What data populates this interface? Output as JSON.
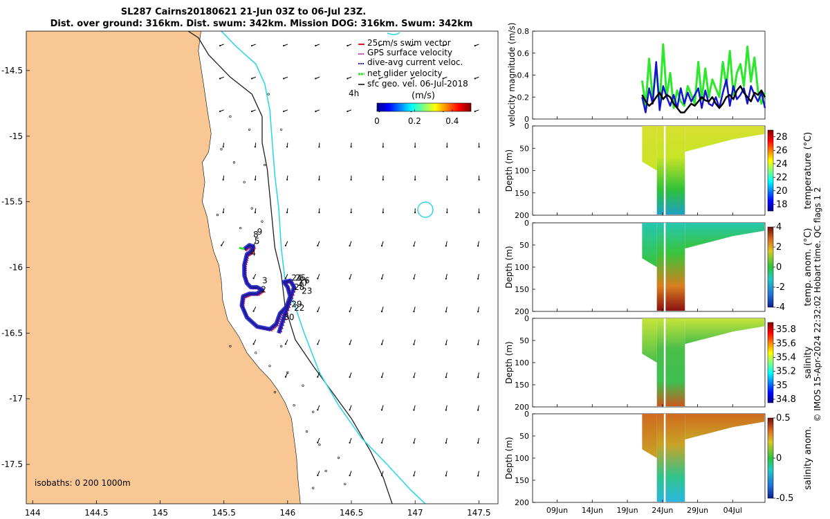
{
  "colors": {
    "land": "#F9C794",
    "isobath_200": "#1E1E1E",
    "isobath_1000": "#2ED7E6",
    "track": "#1B1B8E",
    "swim_vector": "#E31A1C",
    "gps_velocity": "#D52BD5",
    "dive_avg": "#1414D0",
    "net_velocity": "#2BE82B",
    "sfc_geo": "#000000"
  },
  "chart_data": [
    {
      "type": "map",
      "title": "SL287 Cairns20180621 21-Jun 03Z to 06-Jul 23Z.",
      "subtitle": "Dist. over ground: 316km. Dist. swum: 342km. Mission DOG: 316km. Swum: 342km",
      "xlim": [
        143.95,
        147.65
      ],
      "ylim": [
        -17.8,
        -14.2
      ],
      "xticks": [
        "144",
        "144.5",
        "145",
        "145.5",
        "146",
        "146.5",
        "147",
        "147.5"
      ],
      "yticks": [
        "-14.5",
        "-15",
        "-15.5",
        "-16",
        "-16.5",
        "-17",
        "-17.5"
      ],
      "legend": [
        "25cm/s swim vector",
        "GPS surface velocity",
        "dive-avg current veloc.",
        "net glider velocity",
        "sfc geo. vel. 06-Jul-2018"
      ],
      "legend_placement": "top-right",
      "time_marker": "4h",
      "colorbar_label": "(m/s)",
      "colorbar_ticks": [
        "0",
        "0.2",
        "0.4"
      ],
      "colorbar_range": [
        0,
        0.5
      ],
      "isobaths_label": "isobaths: 0   200  1000m",
      "day_labels": [
        {
          "t": "9",
          "lon": 145.76,
          "lat": -15.75
        },
        {
          "t": "8",
          "lon": 145.73,
          "lat": -15.77
        },
        {
          "t": "5",
          "lon": 145.74,
          "lat": -15.82
        },
        {
          "t": "4",
          "lon": 145.71,
          "lat": -15.91
        },
        {
          "t": "3",
          "lon": 145.8,
          "lat": -16.12
        },
        {
          "t": "2",
          "lon": 145.79,
          "lat": -16.19
        },
        {
          "t": "25",
          "lon": 146.06,
          "lat": -16.1
        },
        {
          "t": "26",
          "lon": 146.09,
          "lat": -16.12
        },
        {
          "t": "27",
          "lon": 146.08,
          "lat": -16.14
        },
        {
          "t": "24",
          "lon": 146.03,
          "lat": -16.1
        },
        {
          "t": "28",
          "lon": 146.05,
          "lat": -16.17
        },
        {
          "t": "23",
          "lon": 146.11,
          "lat": -16.2
        },
        {
          "t": "29",
          "lon": 146.03,
          "lat": -16.3
        },
        {
          "t": "22",
          "lon": 146.05,
          "lat": -16.33
        },
        {
          "t": "30",
          "lon": 145.97,
          "lat": -16.4
        }
      ],
      "track": [
        [
          145.66,
          -15.86
        ],
        [
          145.7,
          -15.83
        ],
        [
          145.73,
          -15.84
        ],
        [
          145.71,
          -15.88
        ],
        [
          145.68,
          -15.9
        ],
        [
          145.66,
          -15.98
        ],
        [
          145.66,
          -16.06
        ],
        [
          145.68,
          -16.12
        ],
        [
          145.71,
          -16.15
        ],
        [
          145.76,
          -16.15
        ],
        [
          145.8,
          -16.17
        ],
        [
          145.76,
          -16.2
        ],
        [
          145.7,
          -16.2
        ],
        [
          145.65,
          -16.22
        ],
        [
          145.64,
          -16.29
        ],
        [
          145.68,
          -16.38
        ],
        [
          145.76,
          -16.45
        ],
        [
          145.86,
          -16.47
        ],
        [
          145.91,
          -16.43
        ],
        [
          145.94,
          -16.35
        ],
        [
          145.99,
          -16.3
        ],
        [
          146.02,
          -16.22
        ],
        [
          146.0,
          -16.15
        ],
        [
          145.97,
          -16.11
        ],
        [
          146.02,
          -16.1
        ],
        [
          146.05,
          -16.15
        ],
        [
          146.01,
          -16.27
        ],
        [
          145.97,
          -16.38
        ],
        [
          145.93,
          -16.5
        ]
      ],
      "coastline": [
        [
          145.32,
          -14.2
        ],
        [
          145.3,
          -14.35
        ],
        [
          145.34,
          -14.6
        ],
        [
          145.37,
          -14.8
        ],
        [
          145.4,
          -14.98
        ],
        [
          145.38,
          -15.12
        ],
        [
          145.33,
          -15.2
        ],
        [
          145.35,
          -15.35
        ],
        [
          145.33,
          -15.5
        ],
        [
          145.37,
          -15.62
        ],
        [
          145.39,
          -15.75
        ],
        [
          145.42,
          -15.88
        ],
        [
          145.46,
          -15.98
        ],
        [
          145.48,
          -16.1
        ],
        [
          145.49,
          -16.25
        ],
        [
          145.53,
          -16.4
        ],
        [
          145.62,
          -16.53
        ],
        [
          145.68,
          -16.65
        ],
        [
          145.78,
          -16.77
        ],
        [
          145.86,
          -16.85
        ],
        [
          145.92,
          -16.93
        ],
        [
          145.98,
          -17.03
        ],
        [
          146.03,
          -17.15
        ],
        [
          146.05,
          -17.3
        ],
        [
          146.07,
          -17.45
        ],
        [
          146.08,
          -17.6
        ],
        [
          146.1,
          -17.8
        ]
      ],
      "isobath200": [
        [
          145.22,
          -14.2
        ],
        [
          145.3,
          -14.25
        ],
        [
          145.38,
          -14.38
        ],
        [
          145.55,
          -14.55
        ],
        [
          145.72,
          -14.68
        ],
        [
          145.8,
          -14.85
        ],
        [
          145.8,
          -15.05
        ],
        [
          145.84,
          -15.25
        ],
        [
          145.86,
          -15.45
        ],
        [
          145.88,
          -15.65
        ],
        [
          145.9,
          -15.85
        ],
        [
          145.95,
          -16.05
        ],
        [
          145.98,
          -16.3
        ],
        [
          146.06,
          -16.55
        ],
        [
          146.2,
          -16.75
        ],
        [
          146.35,
          -16.95
        ],
        [
          146.5,
          -17.15
        ],
        [
          146.65,
          -17.4
        ],
        [
          146.75,
          -17.6
        ],
        [
          146.82,
          -17.8
        ]
      ],
      "isobath1000": [
        [
          145.48,
          -14.2
        ],
        [
          145.6,
          -14.32
        ],
        [
          145.75,
          -14.45
        ],
        [
          145.82,
          -14.6
        ],
        [
          145.86,
          -14.8
        ],
        [
          145.88,
          -15.05
        ],
        [
          145.9,
          -15.3
        ],
        [
          145.93,
          -15.55
        ],
        [
          145.95,
          -15.85
        ],
        [
          145.98,
          -16.1
        ],
        [
          146.06,
          -16.3
        ],
        [
          146.13,
          -16.5
        ],
        [
          146.25,
          -16.8
        ],
        [
          146.4,
          -17.05
        ],
        [
          146.58,
          -17.3
        ],
        [
          146.78,
          -17.5
        ],
        [
          146.97,
          -17.7
        ],
        [
          147.08,
          -17.8
        ]
      ]
    },
    {
      "type": "line",
      "ylabel": "velocity magnitude (m/s)",
      "ylim": [
        0,
        0.8
      ],
      "yticks": [
        "0",
        "0.2",
        "0.4",
        "0.6",
        "0.8"
      ],
      "x_start_day": 21.1,
      "x_step_days": 0.5,
      "series": [
        {
          "name": "net glider velocity",
          "values": [
            0.35,
            0.12,
            0.55,
            0.18,
            0.48,
            0.12,
            0.68,
            0.2,
            0.42,
            0.1,
            0.26,
            0.16,
            0.12,
            0.3,
            0.22,
            0.14,
            0.52,
            0.18,
            0.46,
            0.2,
            0.36,
            0.28,
            0.2,
            0.52,
            0.3,
            0.62,
            0.22,
            0.42,
            0.5,
            0.3,
            0.66,
            0.34,
            0.56,
            0.26,
            0.14,
            0.24
          ]
        },
        {
          "name": "dive-avg current veloc.",
          "values": [
            0.2,
            0.06,
            0.28,
            0.14,
            0.52,
            0.08,
            0.3,
            0.2,
            0.12,
            0.22,
            0.1,
            0.28,
            0.14,
            0.24,
            0.16,
            0.22,
            0.28,
            0.1,
            0.26,
            0.14,
            0.12,
            0.2,
            0.1,
            0.24,
            0.36,
            0.12,
            0.3,
            0.18,
            0.22,
            0.28,
            0.14,
            0.3,
            0.22,
            0.16,
            0.24,
            0.1
          ]
        },
        {
          "name": "sfc geo. vel.",
          "values": [
            0.22,
            0.16,
            0.12,
            0.15,
            0.2,
            0.24,
            0.18,
            0.22,
            0.2,
            0.14,
            0.1,
            0.06,
            0.06,
            0.1,
            0.14,
            0.12,
            0.16,
            0.2,
            0.17,
            0.16,
            0.2,
            0.14,
            0.1,
            0.14,
            0.2,
            0.22,
            0.18,
            0.26,
            0.3,
            0.24,
            0.2,
            0.16,
            0.24,
            0.22,
            0.26,
            0.2
          ]
        }
      ]
    },
    {
      "type": "heatmap",
      "ylabel": "Depth (m)",
      "colorbar_label": "temperature (°C)",
      "clim": [
        17,
        29
      ],
      "colorbar_ticks": [
        "28",
        "26",
        "24",
        "22",
        "20",
        "18"
      ],
      "yticks": [
        "0",
        "50",
        "100",
        "150",
        "200"
      ]
    },
    {
      "type": "heatmap",
      "ylabel": "Depth (m)",
      "colorbar_label": "temp. anom. (°C)",
      "clim": [
        -4,
        4
      ],
      "colorbar_ticks": [
        "4",
        "2",
        "0",
        "-2",
        "-4"
      ],
      "yticks": [
        "0",
        "50",
        "100",
        "150",
        "200"
      ]
    },
    {
      "type": "heatmap",
      "ylabel": "Depth (m)",
      "colorbar_label": "salinity",
      "clim": [
        34.75,
        35.9
      ],
      "colorbar_ticks": [
        "35.8",
        "35.6",
        "35.4",
        "35.2",
        "35",
        "34.8"
      ],
      "yticks": [
        "0",
        "50",
        "100",
        "150",
        "200"
      ]
    },
    {
      "type": "heatmap",
      "ylabel": "Depth (m)",
      "colorbar_label": "salinity anom.",
      "clim": [
        -0.5,
        0.5
      ],
      "colorbar_ticks": [
        "0.5",
        "0",
        "-0.5"
      ],
      "yticks": [
        "0",
        "50",
        "100",
        "150",
        "200"
      ],
      "xticks": [
        "09Jun",
        "14Jun",
        "19Jun",
        "24Jun",
        "29Jun",
        "04Jul"
      ]
    }
  ],
  "side_note": "© IMOS 15-Apr-2024 22:32:02 Hobart time. QC flags 1  2"
}
